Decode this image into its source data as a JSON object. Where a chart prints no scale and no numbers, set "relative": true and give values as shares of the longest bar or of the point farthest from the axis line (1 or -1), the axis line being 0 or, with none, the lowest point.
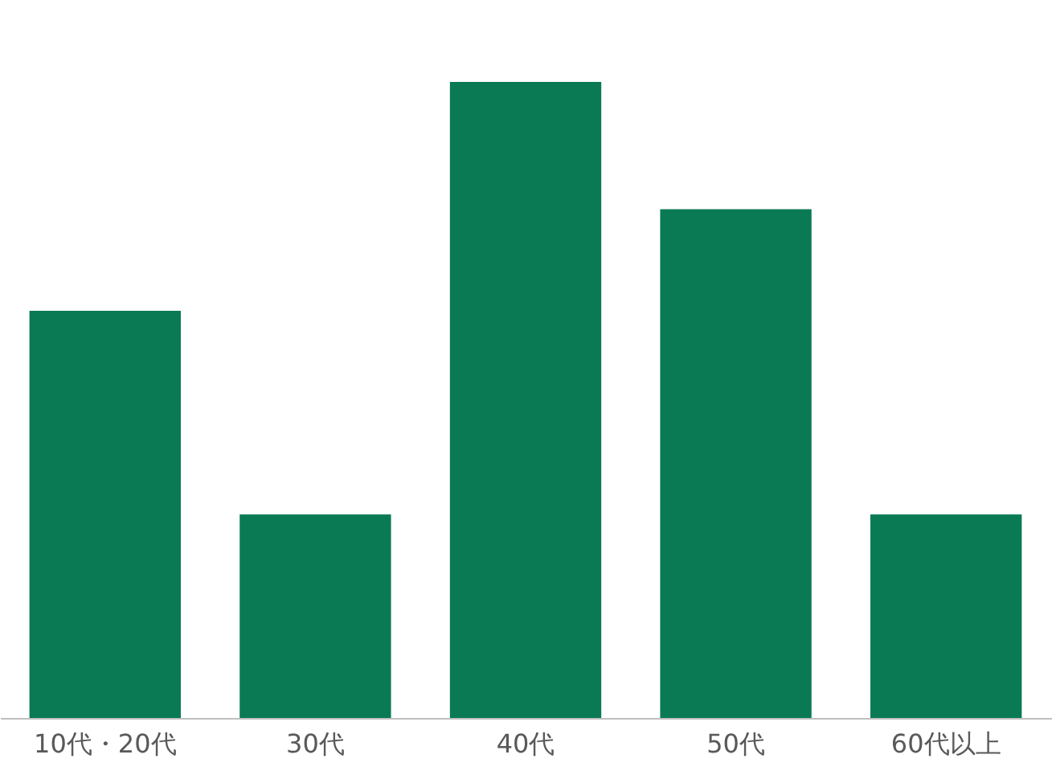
{
  "chart_data": {
    "type": "bar",
    "relative": true,
    "categories": [
      "10代・20代",
      "30代",
      "40代",
      "50代",
      "60代以上"
    ],
    "values": [
      0.64,
      0.32,
      1,
      0.8,
      0.32
    ],
    "color": "#0a7a55",
    "grid": false
  }
}
